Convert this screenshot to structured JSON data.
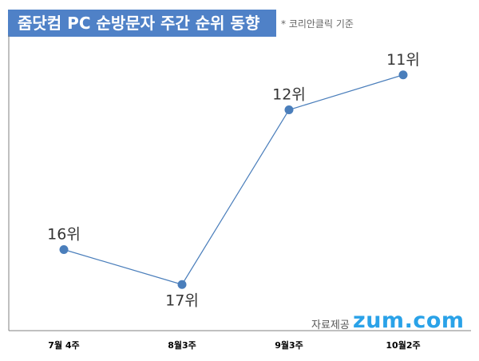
{
  "title": "줌닷컴 PC 순방문자 주간 순위 동향",
  "subtitle": "* 코리안클릭 기준",
  "source": {
    "label": "자료제공",
    "brand": "zum.com",
    "brand_color": "#2aa2e8"
  },
  "colors": {
    "title_bg": "#4f81c7",
    "line": "#4a7ebb",
    "marker": "#4a7ebb"
  },
  "chart_data": {
    "type": "line",
    "title": "줌닷컴 PC 순방문자 주간 순위 동향",
    "subtitle": "* 코리안클릭 기준",
    "categories": [
      "7월 4주",
      "8월3주",
      "9월3주",
      "10월2주"
    ],
    "series": [
      {
        "values": [
          16,
          17,
          12,
          11
        ],
        "labels": [
          "16위",
          "17위",
          "12위",
          "11위"
        ]
      }
    ],
    "ylim": [
      18,
      10
    ],
    "y_inverted": true,
    "grid": false,
    "legend": "none"
  }
}
